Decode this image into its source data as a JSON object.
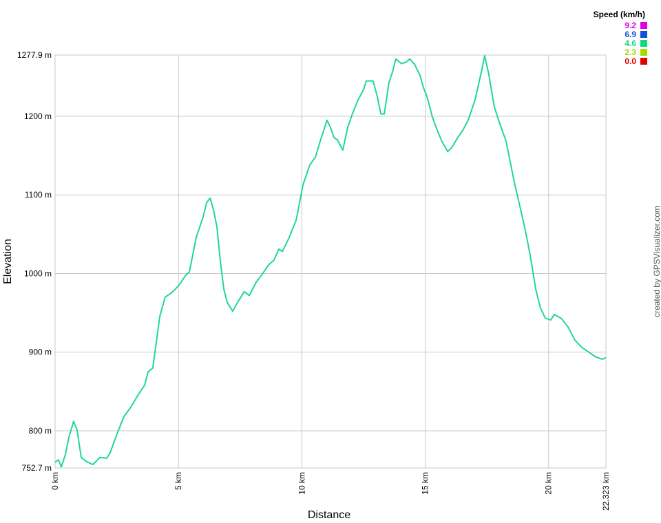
{
  "chart_data": {
    "type": "line",
    "x_label": "Distance",
    "y_label": "Elevation",
    "credit": "created by GPSVisualizer.com",
    "x": [
      0,
      0.14,
      0.25,
      0.42,
      0.56,
      0.75,
      0.89,
      1.06,
      1.26,
      1.53,
      1.81,
      2.09,
      2.23,
      2.51,
      2.79,
      3.07,
      3.35,
      3.63,
      3.77,
      3.96,
      4.13,
      4.24,
      4.46,
      4.74,
      5.02,
      5.3,
      5.44,
      5.72,
      5.86,
      6.0,
      6.14,
      6.28,
      6.42,
      6.56,
      6.7,
      6.84,
      6.98,
      7.2,
      7.39,
      7.67,
      7.87,
      8.15,
      8.37,
      8.65,
      8.87,
      9.07,
      9.21,
      9.49,
      9.77,
      9.91,
      10.04,
      10.32,
      10.55,
      10.74,
      11.02,
      11.16,
      11.3,
      11.44,
      11.66,
      11.86,
      12.05,
      12.28,
      12.5,
      12.61,
      12.89,
      13.06,
      13.2,
      13.34,
      13.53,
      13.67,
      13.81,
      14.04,
      14.23,
      14.37,
      14.57,
      14.79,
      14.93,
      15.07,
      15.29,
      15.49,
      15.68,
      15.91,
      16.07,
      16.32,
      16.52,
      16.74,
      17.02,
      17.3,
      17.41,
      17.58,
      17.8,
      18.03,
      18.28,
      18.47,
      18.64,
      18.84,
      19.03,
      19.25,
      19.48,
      19.67,
      19.87,
      20.09,
      20.23,
      20.51,
      20.79,
      21.07,
      21.35,
      21.63,
      21.9,
      22.18,
      22.323
    ],
    "values": [
      760,
      763,
      754,
      770,
      792,
      812,
      801,
      766,
      761,
      757,
      766,
      765,
      772,
      796,
      818,
      830,
      845,
      858,
      875,
      880,
      919,
      945,
      970,
      976,
      985,
      998,
      1002,
      1046,
      1059,
      1072,
      1090,
      1096,
      1081,
      1059,
      1015,
      980,
      963,
      952,
      963,
      977,
      972,
      989,
      998,
      1011,
      1017,
      1031,
      1028,
      1046,
      1068,
      1090,
      1112,
      1138,
      1148,
      1168,
      1195,
      1186,
      1173,
      1170,
      1157,
      1186,
      1203,
      1221,
      1234,
      1245,
      1245,
      1225,
      1203,
      1203,
      1243,
      1256,
      1273,
      1267,
      1269,
      1273,
      1266,
      1252,
      1236,
      1225,
      1199,
      1182,
      1168,
      1155,
      1160,
      1173,
      1182,
      1195,
      1221,
      1260,
      1277,
      1253,
      1212,
      1190,
      1168,
      1138,
      1112,
      1085,
      1059,
      1024,
      980,
      956,
      943,
      941,
      948,
      943,
      932,
      915,
      906,
      900,
      894,
      891,
      893
    ],
    "color": "#1fd69a",
    "xlim": [
      0,
      22.323
    ],
    "xticks": [
      {
        "value": 0,
        "label": "0 km"
      },
      {
        "value": 5,
        "label": "5 km"
      },
      {
        "value": 10,
        "label": "10 km"
      },
      {
        "value": 15,
        "label": "15 km"
      },
      {
        "value": 20,
        "label": "20 km"
      },
      {
        "value": 22.323,
        "label": "22.323 km"
      }
    ],
    "ylim": [
      752.7,
      1277.9
    ],
    "yticks": [
      {
        "value": 752.7,
        "label": "752.7 m"
      },
      {
        "value": 800,
        "label": "800 m"
      },
      {
        "value": 900,
        "label": "900 m"
      },
      {
        "value": 1000,
        "label": "1000 m"
      },
      {
        "value": 1100,
        "label": "1100 m"
      },
      {
        "value": 1200,
        "label": "1200 m"
      },
      {
        "value": 1277.9,
        "label": "1277.9 m"
      }
    ],
    "grid": true,
    "legend": {
      "title": "Speed (km/h)",
      "entries": [
        {
          "label": "9.2",
          "color": "#e000e0"
        },
        {
          "label": "6.9",
          "color": "#1050e0"
        },
        {
          "label": "4.6",
          "color": "#10d880"
        },
        {
          "label": "2.3",
          "color": "#a8d800"
        },
        {
          "label": "0.0",
          "color": "#e00000"
        }
      ]
    }
  }
}
